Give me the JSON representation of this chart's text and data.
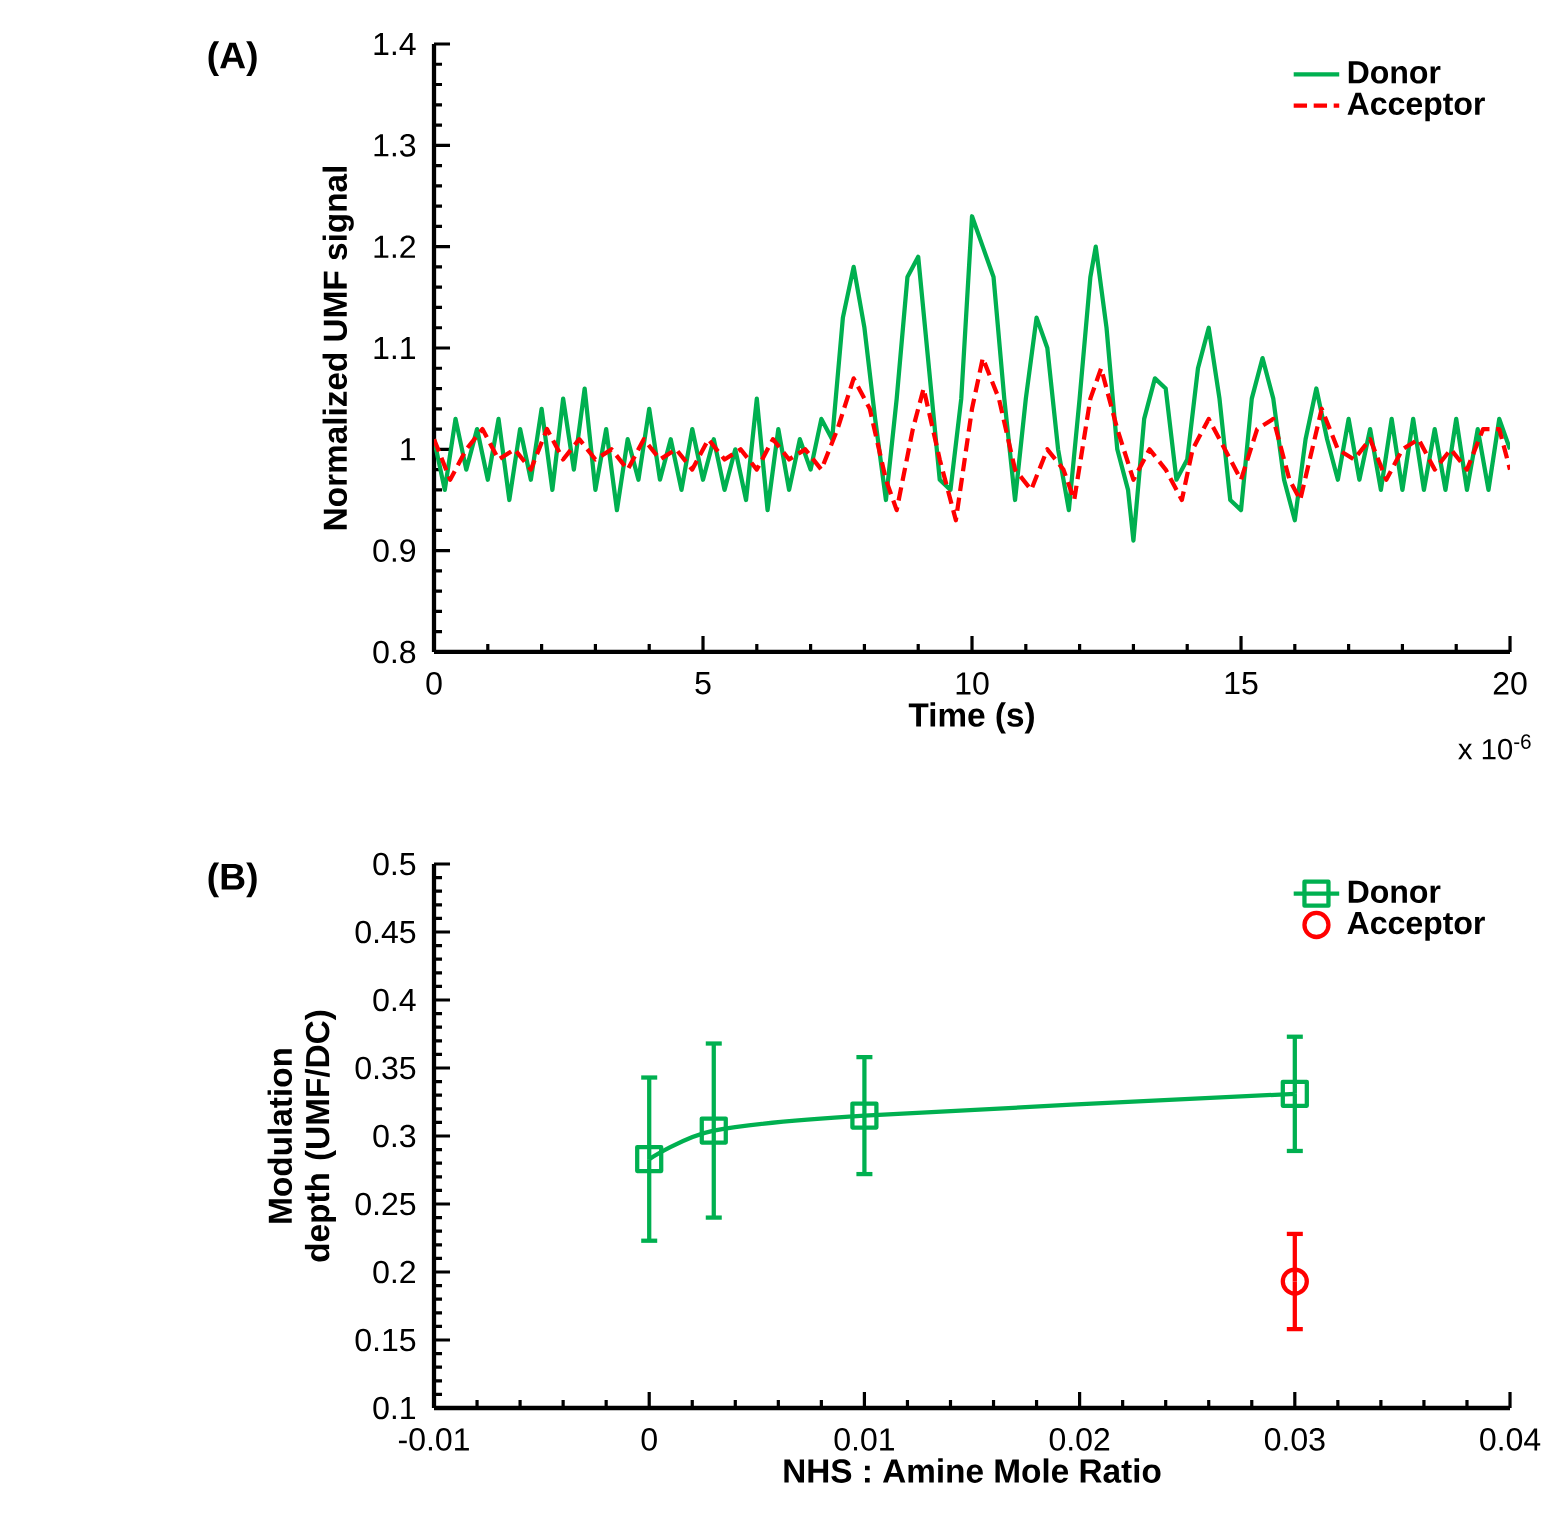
{
  "chart_data": [
    {
      "type": "line",
      "title": "(A)",
      "xlabel": "Time (s)",
      "ylabel": "Normalized UMF signal",
      "xlim": [
        0,
        20
      ],
      "ylim": [
        0.8,
        1.4
      ],
      "xticks": [
        0,
        5,
        10,
        15,
        20
      ],
      "yticks": [
        0.8,
        0.9,
        1,
        1.1,
        1.2,
        1.3,
        1.4
      ],
      "legend": "top right",
      "marker": "none",
      "annotations": [
        "x 10$^{-6}$"
      ],
      "series": [
        {
          "name": "Donor",
          "color": "#00b050",
          "line_style": "solid",
          "x": [
            0,
            0.2,
            0.4,
            0.6,
            0.8,
            1.0,
            1.2,
            1.4,
            1.6,
            1.8,
            2.0,
            2.2,
            2.4,
            2.6,
            2.8,
            3.0,
            3.2,
            3.4,
            3.6,
            3.8,
            4.0,
            4.2,
            4.4,
            4.6,
            4.8,
            5.0,
            5.2,
            5.4,
            5.6,
            5.8,
            6.0,
            6.2,
            6.4,
            6.6,
            6.8,
            7.0,
            7.2,
            7.4,
            7.6,
            7.8,
            8.0,
            8.2,
            8.4,
            8.6,
            8.8,
            9.0,
            9.2,
            9.4,
            9.6,
            9.8,
            10.0,
            10.2,
            10.4,
            10.6,
            10.8,
            11.0,
            11.2,
            11.4,
            11.6,
            11.8,
            12.0,
            12.2,
            12.3,
            12.5,
            12.7,
            12.9,
            13.0,
            13.2,
            13.4,
            13.6,
            13.8,
            14.0,
            14.2,
            14.4,
            14.6,
            14.8,
            15.0,
            15.2,
            15.4,
            15.6,
            15.8,
            16.0,
            16.2,
            16.4,
            16.6,
            16.8,
            17.0,
            17.2,
            17.4,
            17.6,
            17.8,
            18.0,
            18.2,
            18.4,
            18.6,
            18.8,
            19.0,
            19.2,
            19.4,
            19.6,
            19.8,
            20.0
          ],
          "values": [
            1.01,
            0.96,
            1.03,
            0.98,
            1.02,
            0.97,
            1.03,
            0.95,
            1.02,
            0.97,
            1.04,
            0.96,
            1.05,
            0.98,
            1.06,
            0.96,
            1.02,
            0.94,
            1.01,
            0.97,
            1.04,
            0.97,
            1.01,
            0.96,
            1.02,
            0.97,
            1.01,
            0.96,
            1.0,
            0.95,
            1.05,
            0.94,
            1.02,
            0.96,
            1.01,
            0.98,
            1.03,
            1.01,
            1.13,
            1.18,
            1.12,
            1.03,
            0.95,
            1.05,
            1.17,
            1.19,
            1.08,
            0.97,
            0.96,
            1.05,
            1.23,
            1.2,
            1.17,
            1.05,
            0.95,
            1.05,
            1.13,
            1.1,
            1.0,
            0.94,
            1.05,
            1.17,
            1.2,
            1.12,
            1.0,
            0.96,
            0.91,
            1.03,
            1.07,
            1.06,
            0.97,
            0.99,
            1.08,
            1.12,
            1.05,
            0.95,
            0.94,
            1.05,
            1.09,
            1.05,
            0.97,
            0.93,
            1.01,
            1.06,
            1.01,
            0.97,
            1.03,
            0.97,
            1.02,
            0.96,
            1.03,
            0.96,
            1.03,
            0.96,
            1.02,
            0.96,
            1.03,
            0.96,
            1.02,
            0.96,
            1.03,
            1.0
          ]
        },
        {
          "name": "Acceptor",
          "color": "#ff0000",
          "line_style": "dashed",
          "x": [
            0,
            0.3,
            0.6,
            0.9,
            1.2,
            1.5,
            1.8,
            2.1,
            2.4,
            2.7,
            3.0,
            3.3,
            3.6,
            3.9,
            4.2,
            4.5,
            4.8,
            5.1,
            5.4,
            5.7,
            6.0,
            6.3,
            6.6,
            6.9,
            7.2,
            7.5,
            7.8,
            8.1,
            8.4,
            8.6,
            8.9,
            9.1,
            9.4,
            9.7,
            10.0,
            10.2,
            10.5,
            10.8,
            11.1,
            11.4,
            11.7,
            11.9,
            12.2,
            12.4,
            12.7,
            13.0,
            13.3,
            13.6,
            13.9,
            14.1,
            14.4,
            14.7,
            15.0,
            15.3,
            15.6,
            15.9,
            16.1,
            16.5,
            16.8,
            17.1,
            17.4,
            17.7,
            18.0,
            18.3,
            18.6,
            18.9,
            19.2,
            19.5,
            19.8,
            20.0
          ],
          "values": [
            1.01,
            0.97,
            1.0,
            1.02,
            0.99,
            1.0,
            0.98,
            1.02,
            0.99,
            1.01,
            0.99,
            1.0,
            0.98,
            1.01,
            0.99,
            1.0,
            0.98,
            1.01,
            0.99,
            1.0,
            0.98,
            1.01,
            0.99,
            1.0,
            0.98,
            1.02,
            1.07,
            1.04,
            0.97,
            0.94,
            1.02,
            1.06,
            0.99,
            0.93,
            1.04,
            1.09,
            1.05,
            0.98,
            0.96,
            1.0,
            0.98,
            0.95,
            1.05,
            1.08,
            1.02,
            0.97,
            1.0,
            0.98,
            0.95,
            1.0,
            1.03,
            1.0,
            0.97,
            1.02,
            1.03,
            0.97,
            0.95,
            1.04,
            1.0,
            0.99,
            1.01,
            0.97,
            1.0,
            1.01,
            0.98,
            1.0,
            0.98,
            1.02,
            1.02,
            0.98
          ]
        }
      ]
    },
    {
      "type": "line",
      "title": "(B)",
      "xlabel": "NHS : Amine Mole Ratio",
      "ylabel": "Modulation depth (UMF/DC)",
      "xlim": [
        -0.01,
        0.04
      ],
      "ylim": [
        0.1,
        0.5
      ],
      "xticks": [
        -0.01,
        0,
        0.01,
        0.02,
        0.03,
        0.04
      ],
      "yticks": [
        0.1,
        0.15,
        0.2,
        0.25,
        0.3,
        0.35,
        0.4,
        0.45,
        0.5
      ],
      "legend": "top right",
      "series": [
        {
          "name": "Donor",
          "color": "#00b050",
          "marker": "square",
          "x": [
            0,
            0.003,
            0.01,
            0.03
          ],
          "values": [
            0.283,
            0.304,
            0.315,
            0.331
          ],
          "errors": [
            0.06,
            0.064,
            0.043,
            0.042
          ]
        },
        {
          "name": "Acceptor",
          "type": "scatter",
          "color": "#ff0000",
          "marker": "circle",
          "x": [
            0.03
          ],
          "values": [
            0.193
          ],
          "errors": [
            0.035
          ]
        }
      ]
    }
  ]
}
